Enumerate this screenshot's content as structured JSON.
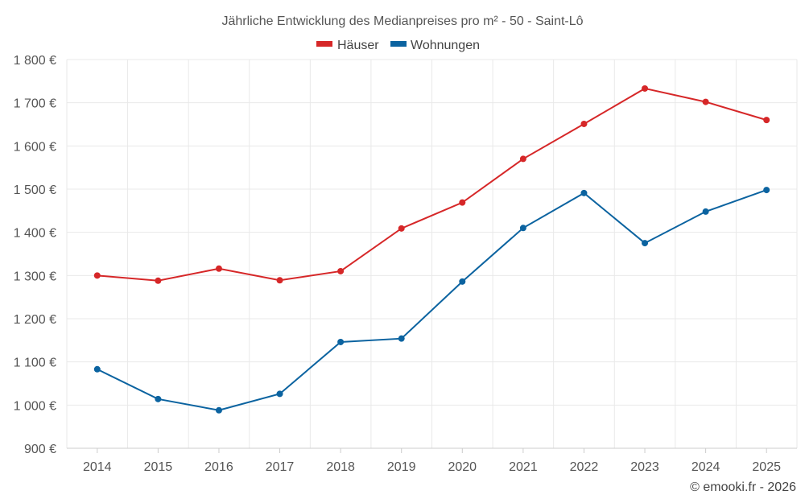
{
  "chart_data": {
    "type": "line",
    "title": "Jährliche Entwicklung des Medianpreises pro m² - 50 - Saint-Lô",
    "categories": [
      "2014",
      "2015",
      "2016",
      "2017",
      "2018",
      "2019",
      "2020",
      "2021",
      "2022",
      "2023",
      "2024",
      "2025"
    ],
    "series": [
      {
        "name": "Häuser",
        "color": "#d62728",
        "values": [
          1300,
          1288,
          1316,
          1289,
          1310,
          1409,
          1469,
          1570,
          1651,
          1733,
          1702,
          1660
        ]
      },
      {
        "name": "Wohnungen",
        "color": "#0b63a0",
        "values": [
          1083,
          1014,
          988,
          1026,
          1146,
          1154,
          1286,
          1410,
          1491,
          1375,
          1448,
          1498
        ]
      }
    ],
    "ylim": [
      900,
      1800
    ],
    "yticks": [
      900,
      1000,
      1100,
      1200,
      1300,
      1400,
      1500,
      1600,
      1700,
      1800
    ],
    "ytick_labels": [
      "900 €",
      "1 000 €",
      "1 100 €",
      "1 200 €",
      "1 300 €",
      "1 400 €",
      "1 500 €",
      "1 600 €",
      "1 700 €",
      "1 800 €"
    ],
    "xlabel": "",
    "ylabel": "",
    "grid": true,
    "legend_position": "top-center"
  },
  "credit": "© emooki.fr - 2026"
}
